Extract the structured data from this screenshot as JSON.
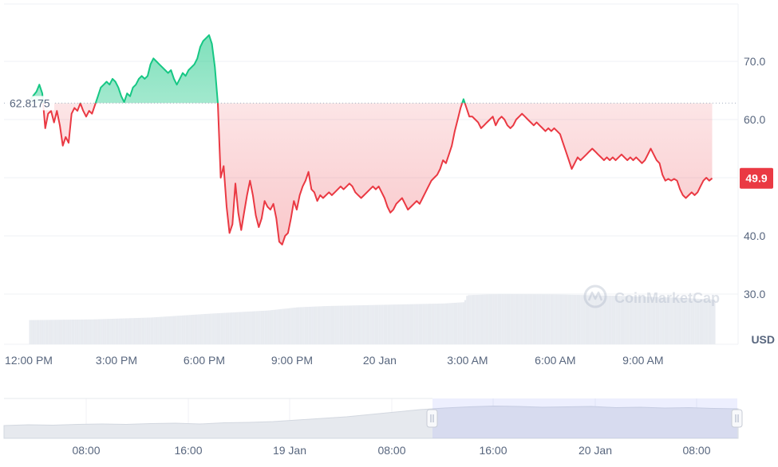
{
  "chart_data": {
    "type": "area",
    "baseline": 62.8175,
    "baseline_label": "62.8175",
    "current_label": "49.9",
    "currency_label": "USD",
    "watermark": "CoinMarketCap",
    "ylim": [
      24,
      80
    ],
    "y_ticks": [
      {
        "value": 70,
        "label": "70.0"
      },
      {
        "value": 60,
        "label": "60.0"
      },
      {
        "value": 40,
        "label": "40.0"
      },
      {
        "value": 30,
        "label": "30.0"
      }
    ],
    "x_ticks": [
      {
        "t": 0,
        "label": "12:00 PM"
      },
      {
        "t": 3,
        "label": "3:00 PM"
      },
      {
        "t": 6,
        "label": "6:00 PM"
      },
      {
        "t": 9,
        "label": "9:00 PM"
      },
      {
        "t": 12,
        "label": "20 Jan"
      },
      {
        "t": 15,
        "label": "3:00 AM"
      },
      {
        "t": 18,
        "label": "6:00 AM"
      },
      {
        "t": 21,
        "label": "9:00 AM"
      }
    ],
    "xlim": [
      0,
      24
    ],
    "series": [
      {
        "values": [
          [
            -0.1,
            63.5
          ],
          [
            0.1,
            64.8
          ],
          [
            0.2,
            66.0
          ],
          [
            0.3,
            64.5
          ],
          [
            0.4,
            58.5
          ],
          [
            0.5,
            61.0
          ],
          [
            0.6,
            61.5
          ],
          [
            0.7,
            59.5
          ],
          [
            0.8,
            61.5
          ],
          [
            0.9,
            59.0
          ],
          [
            1.0,
            55.5
          ],
          [
            1.1,
            57.0
          ],
          [
            1.2,
            56.0
          ],
          [
            1.3,
            61.0
          ],
          [
            1.4,
            62.0
          ],
          [
            1.5,
            61.5
          ],
          [
            1.6,
            62.8
          ],
          [
            1.7,
            61.5
          ],
          [
            1.8,
            60.5
          ],
          [
            1.9,
            61.5
          ],
          [
            2.0,
            61.0
          ],
          [
            2.1,
            62.5
          ],
          [
            2.2,
            64.0
          ],
          [
            2.3,
            65.5
          ],
          [
            2.4,
            66.0
          ],
          [
            2.5,
            66.5
          ],
          [
            2.6,
            66.0
          ],
          [
            2.7,
            67.0
          ],
          [
            2.8,
            66.5
          ],
          [
            2.9,
            65.5
          ],
          [
            3.0,
            64.0
          ],
          [
            3.1,
            63.0
          ],
          [
            3.2,
            64.5
          ],
          [
            3.3,
            64.0
          ],
          [
            3.4,
            65.5
          ],
          [
            3.5,
            66.0
          ],
          [
            3.6,
            67.0
          ],
          [
            3.7,
            67.5
          ],
          [
            3.8,
            67.0
          ],
          [
            3.9,
            67.5
          ],
          [
            4.0,
            69.5
          ],
          [
            4.1,
            70.5
          ],
          [
            4.2,
            70.0
          ],
          [
            4.3,
            69.5
          ],
          [
            4.4,
            69.0
          ],
          [
            4.5,
            68.5
          ],
          [
            4.6,
            68.0
          ],
          [
            4.7,
            68.5
          ],
          [
            4.8,
            67.0
          ],
          [
            4.9,
            66.0
          ],
          [
            5.0,
            67.0
          ],
          [
            5.1,
            68.0
          ],
          [
            5.2,
            67.5
          ],
          [
            5.3,
            68.5
          ],
          [
            5.4,
            69.0
          ],
          [
            5.5,
            69.5
          ],
          [
            5.6,
            70.5
          ],
          [
            5.7,
            72.5
          ],
          [
            5.8,
            73.5
          ],
          [
            5.9,
            74.0
          ],
          [
            6.0,
            74.5
          ],
          [
            6.1,
            73.0
          ],
          [
            6.2,
            69.0
          ],
          [
            6.3,
            62.8
          ],
          [
            6.4,
            50.0
          ],
          [
            6.5,
            52.0
          ],
          [
            6.6,
            45.0
          ],
          [
            6.7,
            40.5
          ],
          [
            6.8,
            42.0
          ],
          [
            6.9,
            49.0
          ],
          [
            7.0,
            44.0
          ],
          [
            7.1,
            41.0
          ],
          [
            7.2,
            44.0
          ],
          [
            7.3,
            47.0
          ],
          [
            7.4,
            49.5
          ],
          [
            7.5,
            47.0
          ],
          [
            7.6,
            43.5
          ],
          [
            7.7,
            41.5
          ],
          [
            7.8,
            43.0
          ],
          [
            7.9,
            46.0
          ],
          [
            8.0,
            45.0
          ],
          [
            8.1,
            44.5
          ],
          [
            8.2,
            45.5
          ],
          [
            8.3,
            43.0
          ],
          [
            8.4,
            39.0
          ],
          [
            8.5,
            38.5
          ],
          [
            8.6,
            40.0
          ],
          [
            8.7,
            40.5
          ],
          [
            8.8,
            43.0
          ],
          [
            8.9,
            46.0
          ],
          [
            9.0,
            44.5
          ],
          [
            9.1,
            47.0
          ],
          [
            9.2,
            48.5
          ],
          [
            9.3,
            49.5
          ],
          [
            9.4,
            51.0
          ],
          [
            9.5,
            48.0
          ],
          [
            9.6,
            47.5
          ],
          [
            9.7,
            46.0
          ],
          [
            9.8,
            47.0
          ],
          [
            9.9,
            46.5
          ],
          [
            10.0,
            47.0
          ],
          [
            10.1,
            47.5
          ],
          [
            10.2,
            47.0
          ],
          [
            10.3,
            47.5
          ],
          [
            10.4,
            48.0
          ],
          [
            10.5,
            48.5
          ],
          [
            10.6,
            48.0
          ],
          [
            10.7,
            48.5
          ],
          [
            10.8,
            49.0
          ],
          [
            10.9,
            48.5
          ],
          [
            11.0,
            47.5
          ],
          [
            11.1,
            47.0
          ],
          [
            11.2,
            46.5
          ],
          [
            11.3,
            47.0
          ],
          [
            11.4,
            47.5
          ],
          [
            11.5,
            48.0
          ],
          [
            11.6,
            48.5
          ],
          [
            11.7,
            48.0
          ],
          [
            11.8,
            48.5
          ],
          [
            11.9,
            47.5
          ],
          [
            12.0,
            46.5
          ],
          [
            12.1,
            45.0
          ],
          [
            12.2,
            44.0
          ],
          [
            12.3,
            44.5
          ],
          [
            12.4,
            45.5
          ],
          [
            12.5,
            46.0
          ],
          [
            12.6,
            46.5
          ],
          [
            12.7,
            45.5
          ],
          [
            12.8,
            44.5
          ],
          [
            12.9,
            45.0
          ],
          [
            13.0,
            45.5
          ],
          [
            13.1,
            46.0
          ],
          [
            13.2,
            45.5
          ],
          [
            13.3,
            46.5
          ],
          [
            13.4,
            47.5
          ],
          [
            13.5,
            48.5
          ],
          [
            13.6,
            49.5
          ],
          [
            13.7,
            50.0
          ],
          [
            13.8,
            50.5
          ],
          [
            13.9,
            51.5
          ],
          [
            14.0,
            53.0
          ],
          [
            14.1,
            52.5
          ],
          [
            14.2,
            54.0
          ],
          [
            14.3,
            55.5
          ],
          [
            14.4,
            58.0
          ],
          [
            14.5,
            60.0
          ],
          [
            14.6,
            62.0
          ],
          [
            14.7,
            63.5
          ],
          [
            14.8,
            62.0
          ],
          [
            14.9,
            60.5
          ],
          [
            15.0,
            60.5
          ],
          [
            15.1,
            60.0
          ],
          [
            15.2,
            59.5
          ],
          [
            15.3,
            58.5
          ],
          [
            15.4,
            59.0
          ],
          [
            15.5,
            59.5
          ],
          [
            15.6,
            60.0
          ],
          [
            15.7,
            60.5
          ],
          [
            15.8,
            59.0
          ],
          [
            15.9,
            60.0
          ],
          [
            16.0,
            60.5
          ],
          [
            16.1,
            60.0
          ],
          [
            16.2,
            59.0
          ],
          [
            16.3,
            58.5
          ],
          [
            16.4,
            59.0
          ],
          [
            16.5,
            60.0
          ],
          [
            16.6,
            60.5
          ],
          [
            16.7,
            61.0
          ],
          [
            16.8,
            60.5
          ],
          [
            16.9,
            60.0
          ],
          [
            17.0,
            59.5
          ],
          [
            17.1,
            59.0
          ],
          [
            17.2,
            59.5
          ],
          [
            17.3,
            59.0
          ],
          [
            17.4,
            58.5
          ],
          [
            17.5,
            58.0
          ],
          [
            17.6,
            58.5
          ],
          [
            17.7,
            58.0
          ],
          [
            17.8,
            58.5
          ],
          [
            17.9,
            58.0
          ],
          [
            18.0,
            57.5
          ],
          [
            18.1,
            56.0
          ],
          [
            18.2,
            54.5
          ],
          [
            18.3,
            53.0
          ],
          [
            18.4,
            51.5
          ],
          [
            18.5,
            52.5
          ],
          [
            18.6,
            53.5
          ],
          [
            18.7,
            53.0
          ],
          [
            18.8,
            53.5
          ],
          [
            18.9,
            54.0
          ],
          [
            19.0,
            54.5
          ],
          [
            19.1,
            55.0
          ],
          [
            19.2,
            54.5
          ],
          [
            19.3,
            54.0
          ],
          [
            19.4,
            53.5
          ],
          [
            19.5,
            53.0
          ],
          [
            19.6,
            53.5
          ],
          [
            19.7,
            53.0
          ],
          [
            19.8,
            53.5
          ],
          [
            19.9,
            53.0
          ],
          [
            20.0,
            53.5
          ],
          [
            20.1,
            54.0
          ],
          [
            20.2,
            53.5
          ],
          [
            20.3,
            53.0
          ],
          [
            20.4,
            53.5
          ],
          [
            20.5,
            53.0
          ],
          [
            20.6,
            53.5
          ],
          [
            20.7,
            53.0
          ],
          [
            20.8,
            52.5
          ],
          [
            20.9,
            53.0
          ],
          [
            21.0,
            54.0
          ],
          [
            21.1,
            55.0
          ],
          [
            21.2,
            54.0
          ],
          [
            21.3,
            53.0
          ],
          [
            21.4,
            52.5
          ],
          [
            21.5,
            50.5
          ],
          [
            21.6,
            49.5
          ],
          [
            21.7,
            49.8
          ],
          [
            21.8,
            49.5
          ],
          [
            21.9,
            49.8
          ],
          [
            22.0,
            49.5
          ],
          [
            22.1,
            48.0
          ],
          [
            22.2,
            47.0
          ],
          [
            22.3,
            46.5
          ],
          [
            22.4,
            47.0
          ],
          [
            22.5,
            47.5
          ],
          [
            22.6,
            47.0
          ],
          [
            22.7,
            47.5
          ],
          [
            22.8,
            48.5
          ],
          [
            22.9,
            49.5
          ],
          [
            23.0,
            50.0
          ],
          [
            23.1,
            49.5
          ],
          [
            23.2,
            49.9
          ]
        ]
      }
    ],
    "volume_values": [
      [
        0,
        3.8
      ],
      [
        2,
        3.9
      ],
      [
        4,
        4.2
      ],
      [
        6,
        4.8
      ],
      [
        8,
        5.3
      ],
      [
        9,
        5.8
      ],
      [
        10,
        6.0
      ],
      [
        12,
        6.2
      ],
      [
        14,
        6.4
      ],
      [
        14.7,
        6.6
      ],
      [
        14.8,
        7.7
      ],
      [
        16,
        7.9
      ],
      [
        18,
        7.8
      ],
      [
        20,
        7.6
      ],
      [
        22,
        7.3
      ],
      [
        23.3,
        7.0
      ]
    ],
    "navigator": {
      "x_ticks": [
        "08:00",
        "16:00",
        "19 Jan",
        "08:00",
        "16:00",
        "20 Jan",
        "08:00"
      ],
      "values": [
        [
          0,
          3.2
        ],
        [
          1,
          3.4
        ],
        [
          2,
          3.3
        ],
        [
          3,
          3.5
        ],
        [
          4,
          3.6
        ],
        [
          5,
          3.5
        ],
        [
          6,
          3.7
        ],
        [
          7,
          3.8
        ],
        [
          8,
          3.6
        ],
        [
          9,
          3.9
        ],
        [
          10,
          4.0
        ],
        [
          11,
          4.2
        ],
        [
          12,
          4.6
        ],
        [
          13,
          5.0
        ],
        [
          14,
          5.4
        ],
        [
          15,
          6.0
        ],
        [
          16,
          6.6
        ],
        [
          17,
          7.2
        ],
        [
          18,
          7.6
        ],
        [
          19,
          7.9
        ],
        [
          20,
          8.1
        ],
        [
          21,
          8.0
        ],
        [
          22,
          7.8
        ],
        [
          23,
          7.9
        ],
        [
          24,
          8.0
        ],
        [
          25,
          7.7
        ],
        [
          26,
          7.8
        ],
        [
          27,
          7.6
        ],
        [
          28,
          7.7
        ],
        [
          29,
          7.5
        ],
        [
          30,
          7.4
        ]
      ]
    }
  }
}
